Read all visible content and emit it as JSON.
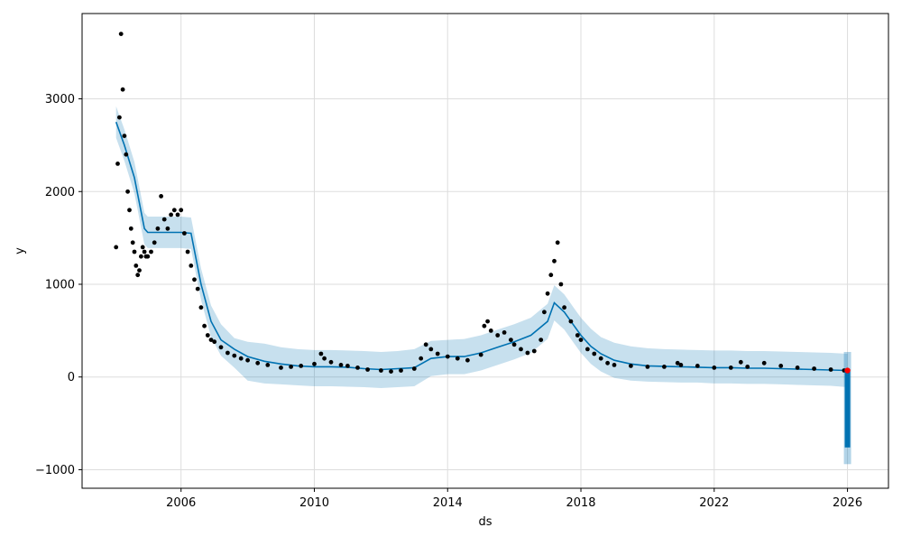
{
  "chart_data": {
    "type": "line",
    "title": "",
    "xlabel": "ds",
    "ylabel": "y",
    "xlim": [
      2003.03,
      2027.23
    ],
    "ylim": [
      -1200,
      3920
    ],
    "grid": true,
    "x_ticks": [
      {
        "value": 2006,
        "label": "2006"
      },
      {
        "value": 2010,
        "label": "2010"
      },
      {
        "value": 2014,
        "label": "2014"
      },
      {
        "value": 2018,
        "label": "2018"
      },
      {
        "value": 2022,
        "label": "2022"
      },
      {
        "value": 2026,
        "label": "2026"
      }
    ],
    "y_ticks": [
      {
        "value": -1000,
        "label": "−1000"
      },
      {
        "value": 0,
        "label": "0"
      },
      {
        "value": 1000,
        "label": "1000"
      },
      {
        "value": 2000,
        "label": "2000"
      },
      {
        "value": 3000,
        "label": "3000"
      }
    ],
    "colors": {
      "observed": "#000000",
      "forecast_line": "#0072B2",
      "uncertainty_band": "#0072B2",
      "highlight": "#ff0000",
      "grid": "#dddddd"
    },
    "series": [
      {
        "kind": "scatter",
        "color": "#000000",
        "x": [
          2004.05,
          2004.1,
          2004.15,
          2004.2,
          2004.25,
          2004.3,
          2004.35,
          2004.4,
          2004.45,
          2004.5,
          2004.55,
          2004.6,
          2004.65,
          2004.7,
          2004.75,
          2004.8,
          2004.85,
          2004.9,
          2004.95,
          2005.0,
          2005.1,
          2005.2,
          2005.3,
          2005.4,
          2005.5,
          2005.6,
          2005.7,
          2005.8,
          2005.9,
          2006.0,
          2006.1,
          2006.2,
          2006.3,
          2006.4,
          2006.5,
          2006.6,
          2006.7,
          2006.8,
          2006.9,
          2007.0,
          2007.2,
          2007.4,
          2007.6,
          2007.8,
          2008.0,
          2008.3,
          2008.6,
          2009.0,
          2009.3,
          2009.6,
          2010.0,
          2010.2,
          2010.3,
          2010.5,
          2010.8,
          2011.0,
          2011.3,
          2011.6,
          2012.0,
          2012.3,
          2012.6,
          2013.0,
          2013.2,
          2013.35,
          2013.5,
          2013.7,
          2014.0,
          2014.3,
          2014.6,
          2015.0,
          2015.1,
          2015.2,
          2015.3,
          2015.5,
          2015.7,
          2015.9,
          2016.0,
          2016.2,
          2016.4,
          2016.6,
          2016.8,
          2016.9,
          2017.0,
          2017.1,
          2017.2,
          2017.3,
          2017.4,
          2017.5,
          2017.7,
          2017.9,
          2018.0,
          2018.2,
          2018.4,
          2018.6,
          2018.8,
          2019.0,
          2019.5,
          2020.0,
          2020.5,
          2020.9,
          2021.0,
          2021.5,
          2022.0,
          2022.5,
          2022.8,
          2023.0,
          2023.5,
          2024.0,
          2024.5,
          2025.0,
          2025.5,
          2025.9
        ],
        "y": [
          1400,
          2300,
          2800,
          3700,
          3100,
          2600,
          2400,
          2000,
          1800,
          1600,
          1450,
          1350,
          1200,
          1100,
          1150,
          1300,
          1400,
          1350,
          1300,
          1300,
          1350,
          1450,
          1600,
          1950,
          1700,
          1600,
          1750,
          1800,
          1750,
          1800,
          1550,
          1350,
          1200,
          1050,
          950,
          750,
          550,
          450,
          400,
          380,
          320,
          260,
          230,
          200,
          180,
          150,
          130,
          100,
          110,
          120,
          140,
          250,
          200,
          160,
          130,
          120,
          100,
          80,
          70,
          60,
          70,
          90,
          200,
          350,
          300,
          250,
          220,
          200,
          180,
          240,
          550,
          600,
          500,
          450,
          480,
          400,
          350,
          300,
          260,
          280,
          400,
          700,
          900,
          1100,
          1250,
          1450,
          1000,
          750,
          600,
          450,
          400,
          300,
          250,
          200,
          150,
          130,
          120,
          110,
          110,
          150,
          130,
          120,
          100,
          100,
          160,
          110,
          150,
          120,
          100,
          90,
          80,
          70
        ]
      },
      {
        "kind": "line",
        "color": "#0072B2",
        "x": [
          2004.05,
          2004.3,
          2004.6,
          2004.9,
          2005.0,
          2005.5,
          2006.0,
          2006.3,
          2006.6,
          2006.9,
          2007.2,
          2007.6,
          2008.0,
          2008.5,
          2009.0,
          2009.5,
          2010.0,
          2010.5,
          2011.0,
          2011.5,
          2012.0,
          2012.5,
          2013.0,
          2013.5,
          2014.0,
          2014.5,
          2015.0,
          2015.5,
          2016.0,
          2016.5,
          2017.0,
          2017.2,
          2017.5,
          2017.8,
          2018.0,
          2018.3,
          2018.6,
          2019.0,
          2019.5,
          2020.0,
          2020.5,
          2021.0,
          2021.5,
          2022.0,
          2022.5,
          2023.0,
          2023.5,
          2024.0,
          2024.5,
          2025.0,
          2025.5,
          2026.0
        ],
        "y": [
          2750,
          2500,
          2150,
          1600,
          1560,
          1560,
          1560,
          1550,
          1000,
          600,
          400,
          300,
          220,
          170,
          140,
          120,
          110,
          110,
          105,
          90,
          80,
          90,
          100,
          200,
          220,
          220,
          260,
          320,
          380,
          450,
          600,
          800,
          700,
          550,
          450,
          330,
          250,
          180,
          140,
          120,
          115,
          110,
          105,
          100,
          100,
          95,
          95,
          90,
          85,
          80,
          75,
          70
        ]
      }
    ],
    "uncertainty_band": {
      "x": [
        2004.05,
        2004.3,
        2004.6,
        2004.9,
        2005.0,
        2005.5,
        2006.0,
        2006.3,
        2006.6,
        2006.9,
        2007.2,
        2007.6,
        2008.0,
        2008.5,
        2009.0,
        2009.5,
        2010.0,
        2010.5,
        2011.0,
        2011.5,
        2012.0,
        2012.5,
        2013.0,
        2013.5,
        2014.0,
        2014.5,
        2015.0,
        2015.5,
        2016.0,
        2016.5,
        2017.0,
        2017.2,
        2017.5,
        2017.8,
        2018.0,
        2018.3,
        2018.6,
        2019.0,
        2019.5,
        2020.0,
        2020.5,
        2021.0,
        2021.5,
        2022.0,
        2022.5,
        2023.0,
        2023.5,
        2024.0,
        2024.5,
        2025.0,
        2025.5,
        2026.0
      ],
      "lower": [
        2580,
        2330,
        1980,
        1430,
        1390,
        1390,
        1390,
        1380,
        830,
        430,
        230,
        100,
        -40,
        -70,
        -80,
        -90,
        -100,
        -100,
        -105,
        -110,
        -120,
        -110,
        -100,
        10,
        30,
        30,
        70,
        130,
        190,
        260,
        410,
        610,
        510,
        360,
        260,
        140,
        60,
        -10,
        -40,
        -50,
        -55,
        -60,
        -60,
        -70,
        -70,
        -75,
        -75,
        -80,
        -85,
        -90,
        -95,
        -110
      ],
      "upper": [
        2920,
        2670,
        2320,
        1770,
        1730,
        1730,
        1730,
        1720,
        1170,
        770,
        570,
        420,
        380,
        360,
        320,
        300,
        290,
        290,
        285,
        280,
        270,
        280,
        300,
        390,
        400,
        410,
        450,
        510,
        570,
        640,
        790,
        990,
        890,
        740,
        640,
        520,
        430,
        370,
        330,
        310,
        300,
        295,
        290,
        285,
        285,
        280,
        280,
        275,
        270,
        265,
        260,
        250
      ]
    },
    "forecast_tail": {
      "x": 2026.0,
      "band_top": 270,
      "band_bottom": -940,
      "line_top": 60,
      "line_bottom": -760,
      "highlight_y": 70
    }
  }
}
